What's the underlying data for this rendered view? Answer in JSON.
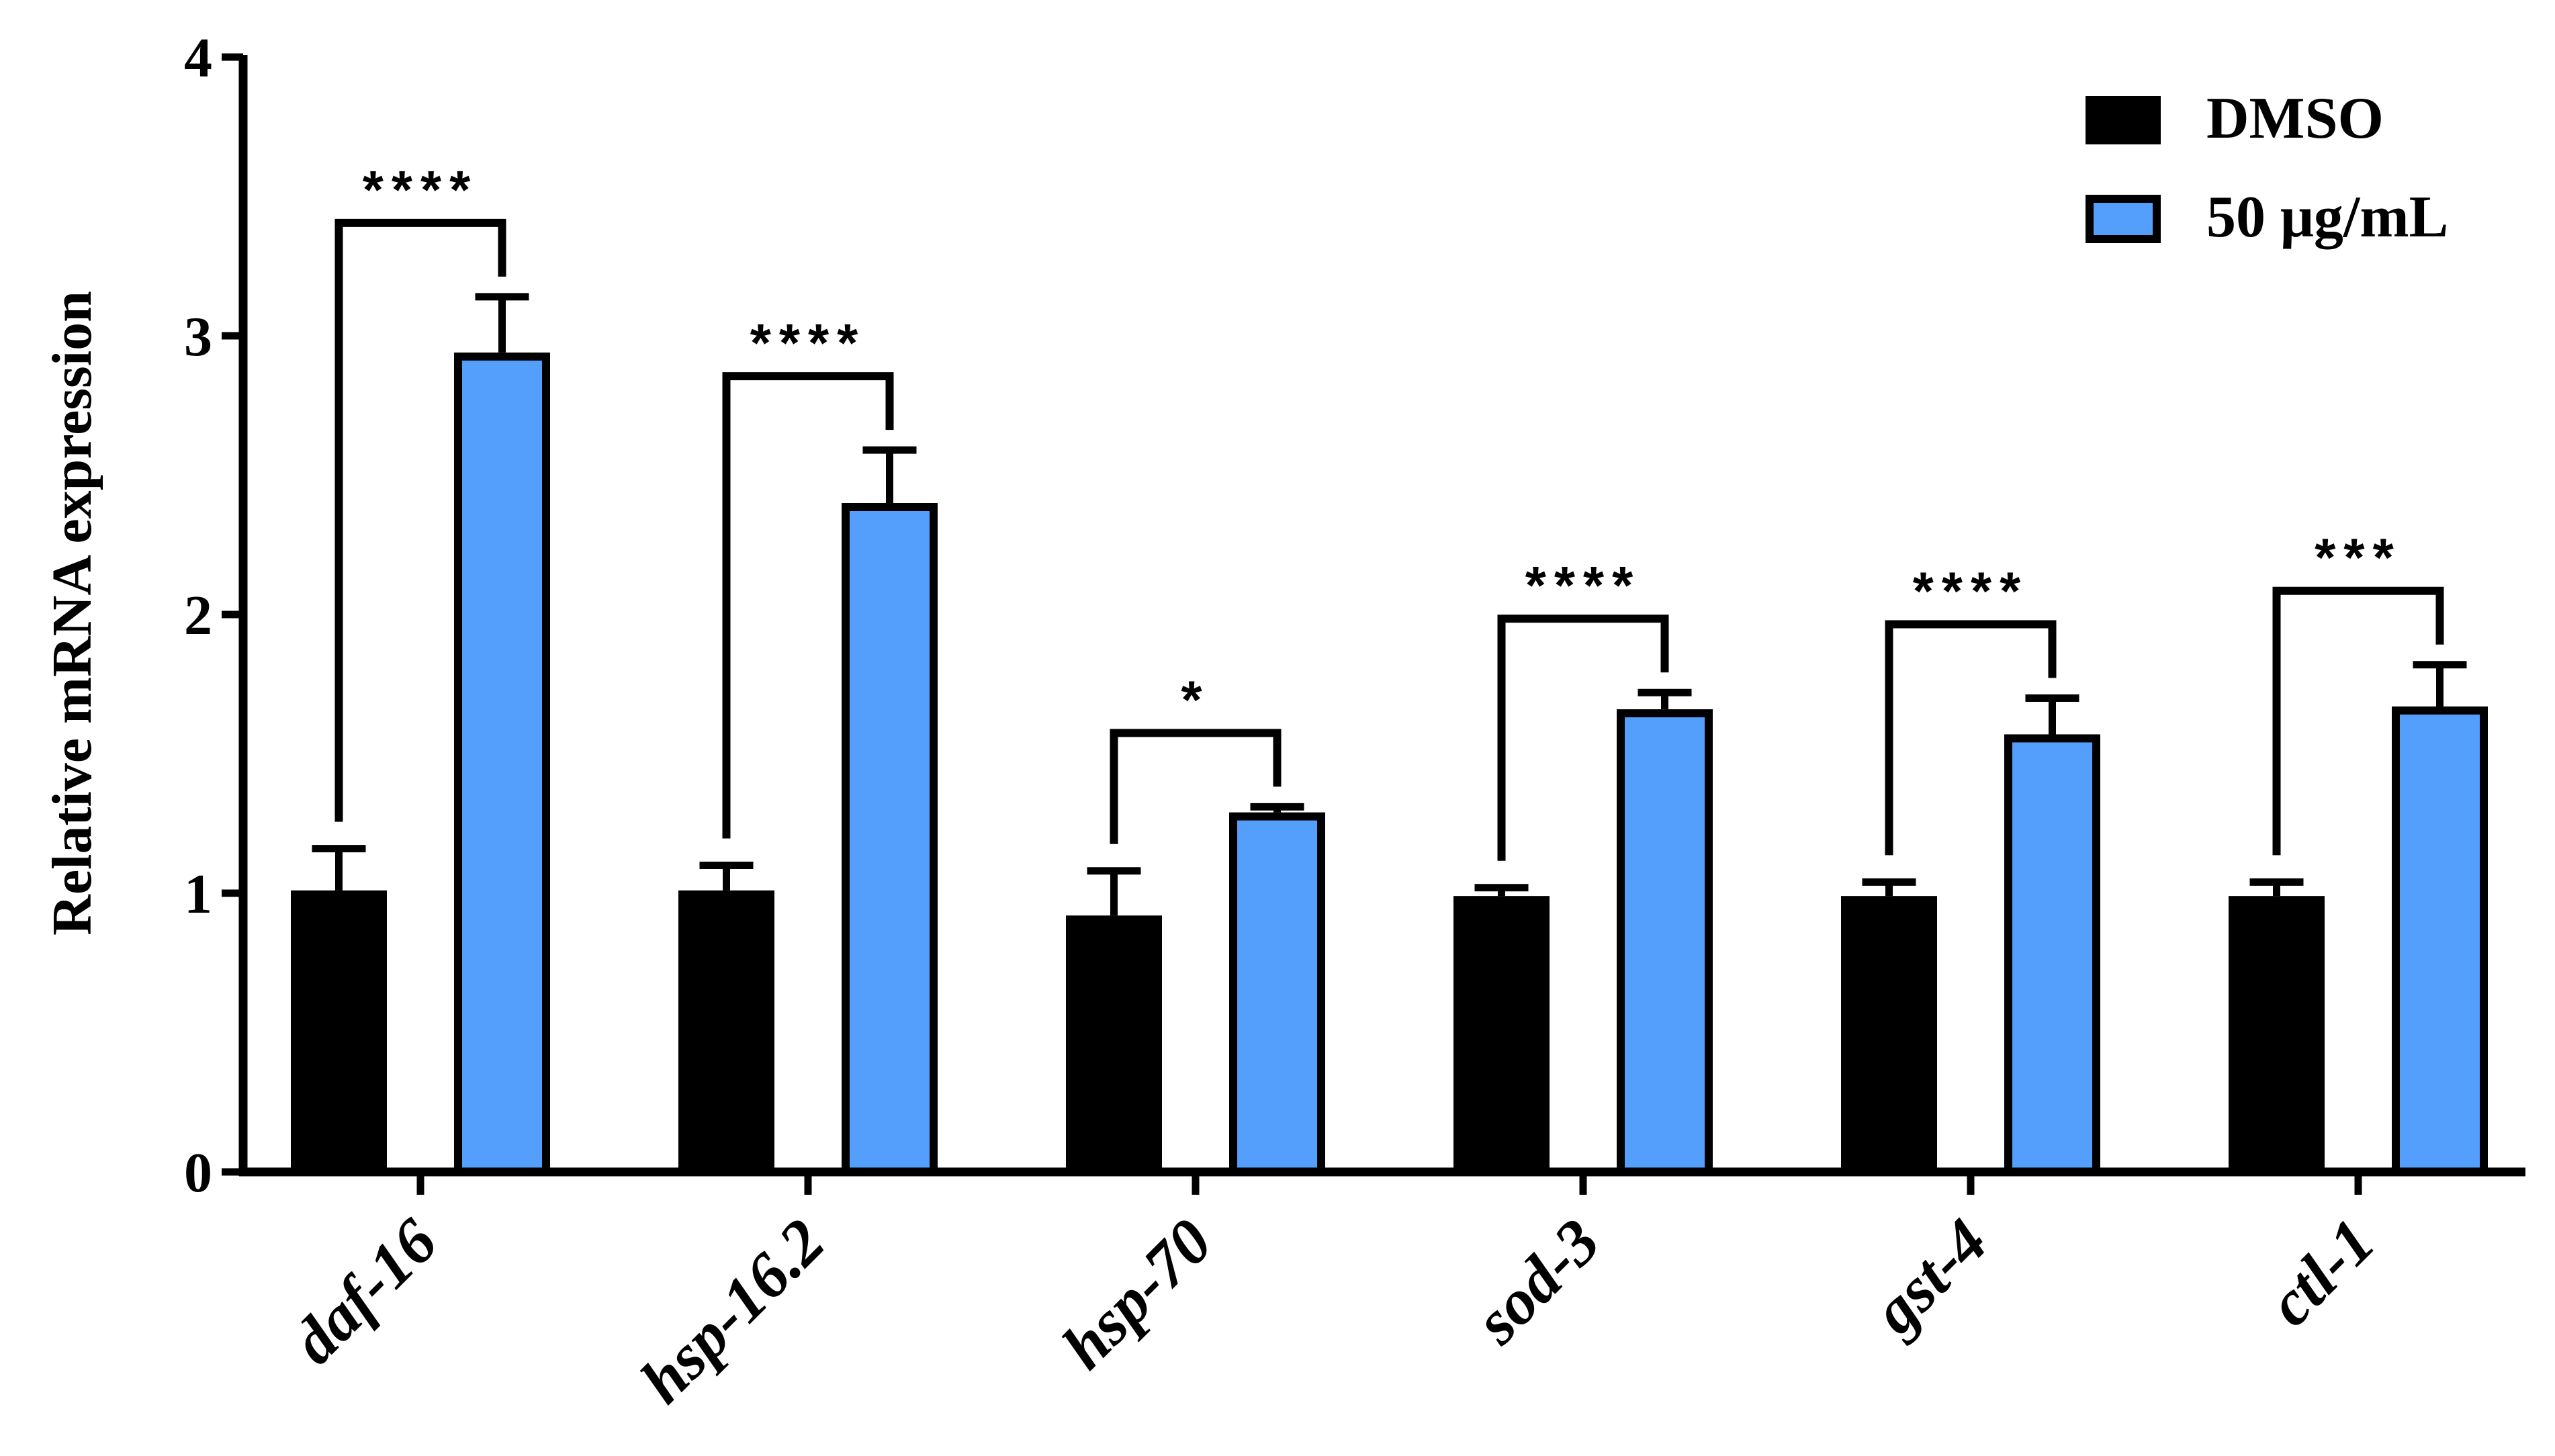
{
  "chart_data": {
    "type": "bar",
    "ylabel": "Relative mRNA expression",
    "ylim": [
      0,
      4
    ],
    "yticks": [
      0,
      1,
      2,
      3,
      4
    ],
    "categories": [
      "daf-16",
      "hsp-16.2",
      "hsp-70",
      "sod-3",
      "gst-4",
      "ctl-1"
    ],
    "series": [
      {
        "name": "DMSO",
        "color": "#000000",
        "values": [
          1.01,
          1.01,
          0.92,
          0.99,
          0.99,
          0.99
        ],
        "errors": [
          0.15,
          0.09,
          0.16,
          0.03,
          0.05,
          0.05
        ]
      },
      {
        "name": "50 μg/mL",
        "color": "#559ffc",
        "values": [
          2.94,
          2.4,
          1.29,
          1.66,
          1.57,
          1.67
        ],
        "errors": [
          0.2,
          0.19,
          0.02,
          0.06,
          0.13,
          0.15
        ]
      }
    ],
    "significance": [
      "****",
      "****",
      "*",
      "****",
      "****",
      "***"
    ],
    "legend_position": "top-right",
    "grid": false
  }
}
